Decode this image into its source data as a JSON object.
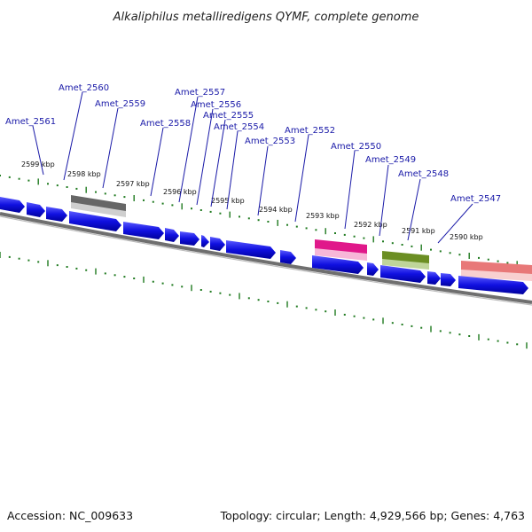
{
  "title": "Alkaliphilus metalliredigens QYMF, complete genome",
  "footer": {
    "accession": "Accession: NC_009633",
    "summary": "Topology: circular; Length: 4,929,566 bp; Genes: 4,763"
  },
  "kbp_ticks": [
    "2599 kbp",
    "2598 kbp",
    "2597 kbp",
    "2596 kbp",
    "2595 kbp",
    "2594 kbp",
    "2593 kbp",
    "2592 kbp",
    "2591 kbp",
    "2590 kbp"
  ],
  "gene_labels": [
    "Amet_2561",
    "Amet_2560",
    "Amet_2559",
    "Amet_2558",
    "Amet_2557",
    "Amet_2556",
    "Amet_2555",
    "Amet_2554",
    "Amet_2553",
    "Amet_2552",
    "Amet_2550",
    "Amet_2549",
    "Amet_2548",
    "Amet_2547"
  ],
  "colors": {
    "cds": "#1212d8",
    "pseudo": "#666666",
    "highlight_magenta": "#e0188a",
    "highlight_olive": "#6b8e23",
    "highlight_salmon": "#e87878",
    "tick": "#1f7a1f",
    "backbone": "#777777",
    "label": "#1a1aa8"
  }
}
